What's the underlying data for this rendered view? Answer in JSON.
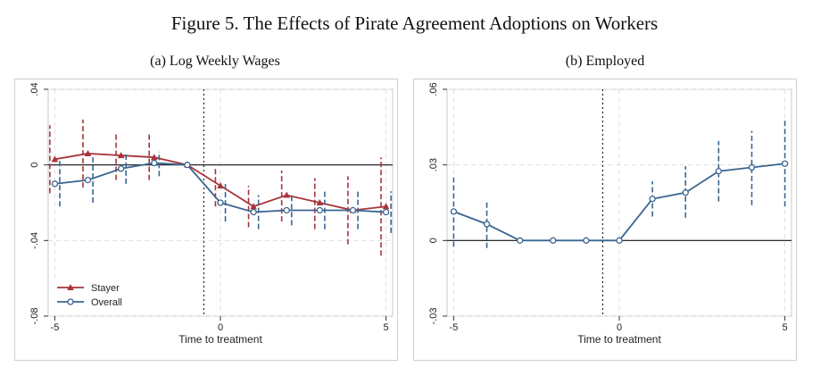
{
  "figure_title": "Figure 5. The Effects of Pirate Agreement Adoptions on Workers",
  "panels": {
    "a": {
      "title": "(a) Log Weekly Wages"
    },
    "b": {
      "title": "(b) Employed"
    }
  },
  "colors": {
    "stayer": "#a8343b",
    "overall": "#3a6591",
    "zero_line": "#111111",
    "grid": "#dddddd",
    "treatment_line": "#222222"
  },
  "chart_data": [
    {
      "type": "line",
      "title": "(a) Log Weekly Wages",
      "xlabel": "Time to treatment",
      "ylabel": "",
      "xlim": [
        -5.2,
        5.2
      ],
      "ylim": [
        -0.08,
        0.04
      ],
      "xticks": [
        -5,
        0,
        5
      ],
      "xtick_labels": [
        "-5",
        "0",
        "5"
      ],
      "yticks": [
        -0.08,
        -0.04,
        0,
        0.04
      ],
      "ytick_labels": [
        "-.08",
        "-.04",
        "0",
        ".04"
      ],
      "grid": true,
      "treatment_line_x": -0.5,
      "legend_position": "bottom-left",
      "x": [
        -5,
        -4,
        -3,
        -2,
        -1,
        0,
        1,
        2,
        3,
        4,
        5
      ],
      "series": [
        {
          "name": "Stayer",
          "marker": "triangle",
          "x_offset": -0.15,
          "values": [
            0.003,
            0.006,
            0.005,
            0.004,
            0.0,
            -0.011,
            -0.022,
            -0.016,
            -0.02,
            -0.024,
            -0.022
          ],
          "ci_low": [
            -0.015,
            -0.012,
            -0.008,
            -0.008,
            0.0,
            -0.022,
            -0.033,
            -0.03,
            -0.034,
            -0.042,
            -0.048
          ],
          "ci_high": [
            0.021,
            0.024,
            0.017,
            0.016,
            0.0,
            -0.002,
            -0.011,
            -0.003,
            -0.007,
            -0.006,
            0.004
          ]
        },
        {
          "name": "Overall",
          "marker": "circle",
          "x_offset": 0.15,
          "values": [
            -0.01,
            -0.008,
            -0.002,
            0.001,
            0.0,
            -0.02,
            -0.025,
            -0.024,
            -0.024,
            -0.024,
            -0.025
          ],
          "ci_low": [
            -0.022,
            -0.02,
            -0.01,
            -0.006,
            0.0,
            -0.03,
            -0.034,
            -0.032,
            -0.034,
            -0.034,
            -0.036
          ],
          "ci_high": [
            0.002,
            0.004,
            0.006,
            0.007,
            0.0,
            -0.01,
            -0.016,
            -0.016,
            -0.014,
            -0.014,
            -0.014
          ]
        }
      ]
    },
    {
      "type": "line",
      "title": "(b) Employed",
      "xlabel": "Time to treatment",
      "ylabel": "",
      "xlim": [
        -5.2,
        5.2
      ],
      "ylim": [
        -0.03,
        0.06
      ],
      "xticks": [
        -5,
        0,
        5
      ],
      "xtick_labels": [
        "-5",
        "0",
        "5"
      ],
      "yticks": [
        -0.03,
        0,
        0.03,
        0.06
      ],
      "ytick_labels": [
        "-.03",
        "0",
        ".03",
        ".06"
      ],
      "grid": true,
      "treatment_line_x": -0.5,
      "legend_position": "none",
      "x": [
        -5,
        -4,
        -3,
        -2,
        -1,
        0,
        1,
        2,
        3,
        4,
        5
      ],
      "series": [
        {
          "name": "Employed",
          "marker": "circle",
          "x_offset": 0,
          "values": [
            0.0115,
            0.0065,
            0.0,
            0.0,
            0.0,
            0.0,
            0.0165,
            0.019,
            0.0275,
            0.029,
            0.0305
          ],
          "ci_low": [
            -0.0025,
            -0.003,
            0.0,
            0.0,
            0.0,
            0.0,
            0.0095,
            0.009,
            0.0155,
            0.014,
            0.0135
          ],
          "ci_high": [
            0.025,
            0.016,
            0.0,
            0.0,
            0.0,
            0.0,
            0.0235,
            0.0295,
            0.0395,
            0.0435,
            0.0475
          ]
        }
      ]
    }
  ]
}
